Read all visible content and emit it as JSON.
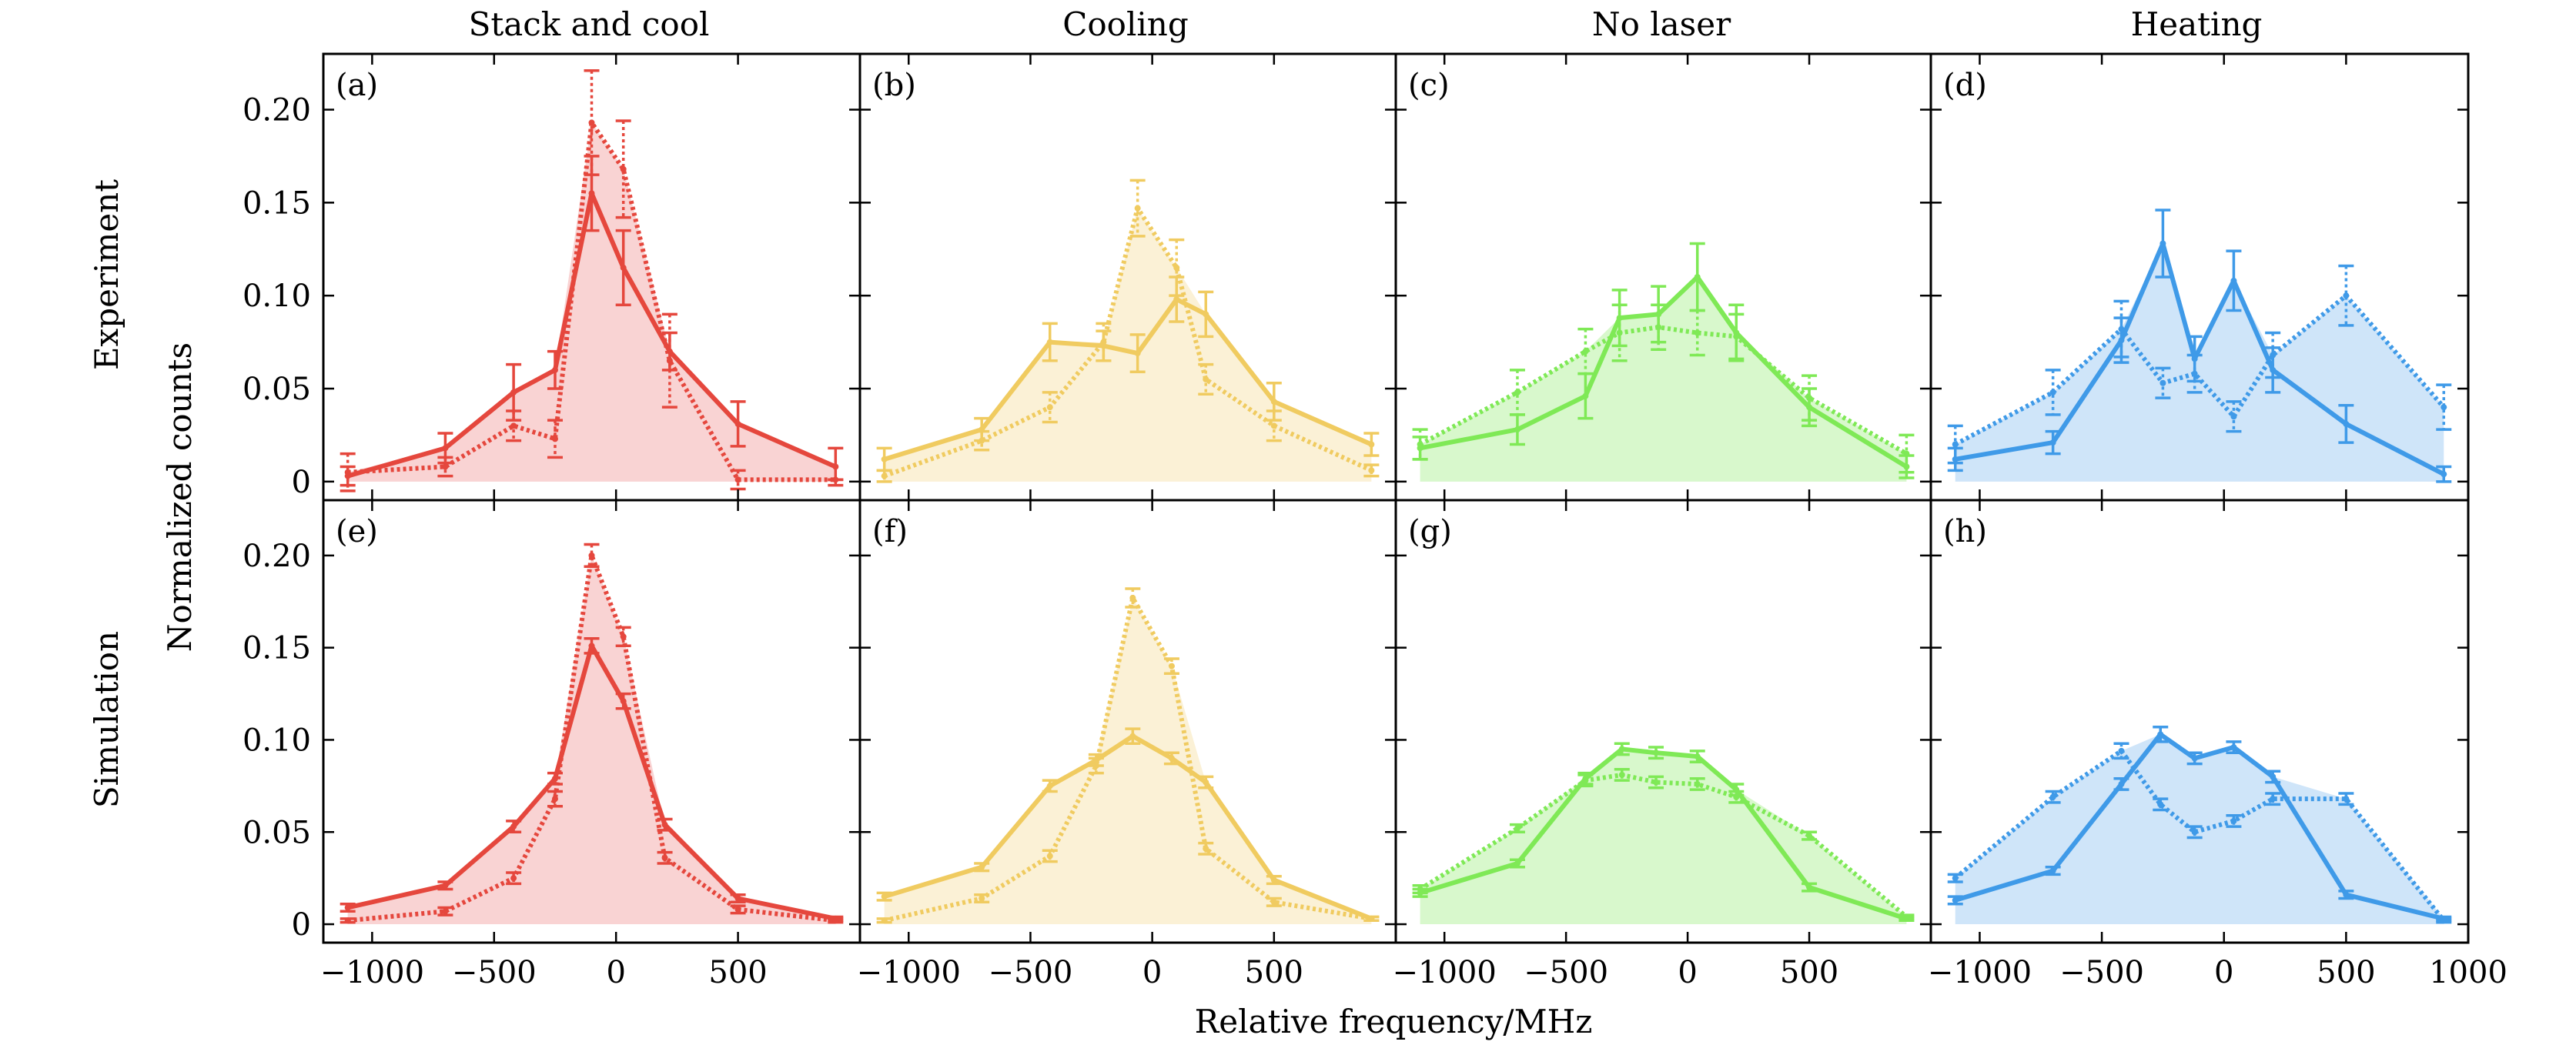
{
  "figure": {
    "column_titles": [
      "Stack and cool",
      "Cooling",
      "No laser",
      "Heating"
    ],
    "row_labels": [
      "Experiment",
      "Simulation"
    ],
    "ylabel": "Normalized counts",
    "xlabel": "Relative frequency/MHz"
  },
  "colors": {
    "red": "#e5473d",
    "red_fill": "#f9d3d3",
    "yellow": "#f0cb60",
    "yellow_fill": "#fbf1d6",
    "green": "#7fe956",
    "green_fill": "#d8f8cc",
    "blue": "#3f9ae8",
    "blue_fill": "#cfe5f9"
  },
  "chart_data": [
    {
      "type": "line",
      "panel": "(a)",
      "row": 0,
      "col": 0,
      "color": "red",
      "xlim": [
        -1200,
        1000
      ],
      "ylim": [
        -0.01,
        0.23
      ],
      "xticks": [
        -1000,
        -500,
        0,
        500,
        1000
      ],
      "yticks": [
        0,
        0.05,
        0.1,
        0.15,
        0.2
      ],
      "ytick_labels": [
        "0",
        "0.05",
        "0.10",
        "0.15",
        "0.20"
      ],
      "xtick_labels": [],
      "series": [
        {
          "name": "solid",
          "style": "solid",
          "x": [
            -1100,
            -700,
            -420,
            -250,
            -100,
            30,
            220,
            500,
            900
          ],
          "y": [
            0.003,
            0.018,
            0.048,
            0.06,
            0.155,
            0.115,
            0.07,
            0.031,
            0.008
          ],
          "err": [
            0.005,
            0.008,
            0.015,
            0.01,
            0.02,
            0.02,
            0.01,
            0.012,
            0.01
          ]
        },
        {
          "name": "dotted",
          "style": "dotted",
          "x": [
            -1100,
            -700,
            -420,
            -250,
            -100,
            30,
            220,
            500,
            900
          ],
          "y": [
            0.005,
            0.008,
            0.03,
            0.023,
            0.193,
            0.168,
            0.065,
            0.001,
            0.001
          ],
          "err": [
            0.01,
            0.005,
            0.008,
            0.01,
            0.028,
            0.026,
            0.025,
            0.005,
            0.0
          ]
        }
      ]
    },
    {
      "type": "line",
      "panel": "(b)",
      "row": 0,
      "col": 1,
      "color": "yellow",
      "xlim": [
        -1200,
        1000
      ],
      "ylim": [
        -0.01,
        0.23
      ],
      "xticks": [
        -1000,
        -500,
        0,
        500,
        1000
      ],
      "yticks": [
        0,
        0.05,
        0.1,
        0.15,
        0.2
      ],
      "ytick_labels": [],
      "xtick_labels": [],
      "series": [
        {
          "name": "solid",
          "style": "solid",
          "x": [
            -1100,
            -700,
            -420,
            -200,
            -60,
            100,
            220,
            500,
            900
          ],
          "y": [
            0.012,
            0.028,
            0.075,
            0.073,
            0.069,
            0.098,
            0.09,
            0.043,
            0.02
          ],
          "err": [
            0.006,
            0.006,
            0.01,
            0.008,
            0.01,
            0.012,
            0.012,
            0.01,
            0.006
          ]
        },
        {
          "name": "dotted",
          "style": "dotted",
          "x": [
            -1100,
            -700,
            -420,
            -200,
            -60,
            100,
            220,
            500,
            900
          ],
          "y": [
            0.003,
            0.022,
            0.04,
            0.075,
            0.147,
            0.115,
            0.055,
            0.03,
            0.006
          ],
          "err": [
            0.003,
            0.005,
            0.008,
            0.01,
            0.015,
            0.015,
            0.008,
            0.008,
            0.003
          ]
        }
      ]
    },
    {
      "type": "line",
      "panel": "(c)",
      "row": 0,
      "col": 2,
      "color": "green",
      "xlim": [
        -1200,
        1000
      ],
      "ylim": [
        -0.01,
        0.23
      ],
      "xticks": [
        -1000,
        -500,
        0,
        500,
        1000
      ],
      "yticks": [
        0,
        0.05,
        0.1,
        0.15,
        0.2
      ],
      "ytick_labels": [],
      "xtick_labels": [],
      "series": [
        {
          "name": "solid",
          "style": "solid",
          "x": [
            -1100,
            -700,
            -420,
            -280,
            -120,
            40,
            200,
            500,
            900
          ],
          "y": [
            0.018,
            0.028,
            0.046,
            0.088,
            0.09,
            0.11,
            0.08,
            0.04,
            0.008
          ],
          "err": [
            0.006,
            0.008,
            0.012,
            0.015,
            0.015,
            0.018,
            0.015,
            0.01,
            0.006
          ]
        },
        {
          "name": "dotted",
          "style": "dotted",
          "x": [
            -1100,
            -700,
            -420,
            -280,
            -120,
            40,
            200,
            500,
            900
          ],
          "y": [
            0.02,
            0.048,
            0.07,
            0.08,
            0.083,
            0.08,
            0.078,
            0.045,
            0.015
          ],
          "err": [
            0.008,
            0.012,
            0.012,
            0.015,
            0.012,
            0.012,
            0.012,
            0.012,
            0.01
          ]
        }
      ]
    },
    {
      "type": "line",
      "panel": "(d)",
      "row": 0,
      "col": 3,
      "color": "blue",
      "xlim": [
        -1200,
        1000
      ],
      "ylim": [
        -0.01,
        0.23
      ],
      "xticks": [
        -1000,
        -500,
        0,
        500,
        1000
      ],
      "yticks": [
        0,
        0.05,
        0.1,
        0.15,
        0.2
      ],
      "ytick_labels": [],
      "xtick_labels": [],
      "series": [
        {
          "name": "solid",
          "style": "solid",
          "x": [
            -1100,
            -700,
            -420,
            -250,
            -120,
            40,
            200,
            500,
            900
          ],
          "y": [
            0.012,
            0.021,
            0.076,
            0.128,
            0.066,
            0.108,
            0.06,
            0.031,
            0.004
          ],
          "err": [
            0.006,
            0.006,
            0.012,
            0.018,
            0.012,
            0.016,
            0.012,
            0.01,
            0.004
          ]
        },
        {
          "name": "dotted",
          "style": "dotted",
          "x": [
            -1100,
            -700,
            -420,
            -250,
            -120,
            40,
            200,
            500,
            900
          ],
          "y": [
            0.02,
            0.048,
            0.082,
            0.053,
            0.058,
            0.035,
            0.068,
            0.1,
            0.04
          ],
          "err": [
            0.01,
            0.012,
            0.015,
            0.008,
            0.01,
            0.008,
            0.012,
            0.016,
            0.012
          ]
        }
      ]
    },
    {
      "type": "line",
      "panel": "(e)",
      "row": 1,
      "col": 0,
      "color": "red",
      "xlim": [
        -1200,
        1000
      ],
      "ylim": [
        -0.01,
        0.23
      ],
      "xticks": [
        -1000,
        -500,
        0,
        500,
        1000
      ],
      "yticks": [
        0,
        0.05,
        0.1,
        0.15,
        0.2
      ],
      "ytick_labels": [
        "0",
        "0.05",
        "0.10",
        "0.15",
        "0.20"
      ],
      "xtick_labels": [
        "−1000",
        "−500",
        "0",
        "500",
        ""
      ],
      "series": [
        {
          "name": "solid",
          "style": "solid",
          "x": [
            -1100,
            -700,
            -420,
            -250,
            -100,
            30,
            200,
            500,
            900
          ],
          "y": [
            0.009,
            0.021,
            0.053,
            0.079,
            0.151,
            0.121,
            0.054,
            0.014,
            0.003
          ],
          "err": [
            0.002,
            0.002,
            0.003,
            0.003,
            0.004,
            0.004,
            0.003,
            0.002,
            0.001
          ]
        },
        {
          "name": "dotted",
          "style": "dotted",
          "x": [
            -1100,
            -700,
            -420,
            -250,
            -100,
            30,
            200,
            500,
            900
          ],
          "y": [
            0.002,
            0.007,
            0.025,
            0.068,
            0.2,
            0.156,
            0.036,
            0.008,
            0.002
          ],
          "err": [
            0.001,
            0.002,
            0.003,
            0.004,
            0.006,
            0.005,
            0.003,
            0.002,
            0.001
          ]
        }
      ]
    },
    {
      "type": "line",
      "panel": "(f)",
      "row": 1,
      "col": 1,
      "color": "yellow",
      "xlim": [
        -1200,
        1000
      ],
      "ylim": [
        -0.01,
        0.23
      ],
      "xticks": [
        -1000,
        -500,
        0,
        500,
        1000
      ],
      "yticks": [
        0,
        0.05,
        0.1,
        0.15,
        0.2
      ],
      "ytick_labels": [],
      "xtick_labels": [
        "−1000",
        "−500",
        "0",
        "500",
        ""
      ],
      "series": [
        {
          "name": "solid",
          "style": "solid",
          "x": [
            -1100,
            -700,
            -420,
            -230,
            -80,
            80,
            220,
            500,
            900
          ],
          "y": [
            0.015,
            0.031,
            0.075,
            0.089,
            0.102,
            0.09,
            0.077,
            0.024,
            0.003
          ],
          "err": [
            0.002,
            0.002,
            0.003,
            0.003,
            0.004,
            0.003,
            0.003,
            0.002,
            0.001
          ]
        },
        {
          "name": "dotted",
          "style": "dotted",
          "x": [
            -1100,
            -700,
            -420,
            -230,
            -80,
            80,
            220,
            500,
            900
          ],
          "y": [
            0.002,
            0.014,
            0.037,
            0.086,
            0.177,
            0.14,
            0.041,
            0.012,
            0.003
          ],
          "err": [
            0.001,
            0.002,
            0.003,
            0.004,
            0.005,
            0.004,
            0.003,
            0.002,
            0.001
          ]
        }
      ]
    },
    {
      "type": "line",
      "panel": "(g)",
      "row": 1,
      "col": 2,
      "color": "green",
      "xlim": [
        -1200,
        1000
      ],
      "ylim": [
        -0.01,
        0.23
      ],
      "xticks": [
        -1000,
        -500,
        0,
        500,
        1000
      ],
      "yticks": [
        0,
        0.05,
        0.1,
        0.15,
        0.2
      ],
      "ytick_labels": [],
      "xtick_labels": [
        "−1000",
        "−500",
        "0",
        "500",
        ""
      ],
      "series": [
        {
          "name": "solid",
          "style": "solid",
          "x": [
            -1100,
            -700,
            -420,
            -270,
            -130,
            40,
            200,
            500,
            900
          ],
          "y": [
            0.017,
            0.033,
            0.079,
            0.095,
            0.093,
            0.091,
            0.073,
            0.02,
            0.003
          ],
          "err": [
            0.002,
            0.002,
            0.003,
            0.003,
            0.003,
            0.003,
            0.003,
            0.002,
            0.001
          ]
        },
        {
          "name": "dotted",
          "style": "dotted",
          "x": [
            -1100,
            -700,
            -420,
            -270,
            -130,
            40,
            200,
            500,
            900
          ],
          "y": [
            0.019,
            0.052,
            0.078,
            0.081,
            0.077,
            0.076,
            0.069,
            0.048,
            0.004
          ],
          "err": [
            0.002,
            0.002,
            0.003,
            0.003,
            0.003,
            0.003,
            0.003,
            0.002,
            0.001
          ]
        }
      ]
    },
    {
      "type": "line",
      "panel": "(h)",
      "row": 1,
      "col": 3,
      "color": "blue",
      "xlim": [
        -1200,
        1000
      ],
      "ylim": [
        -0.01,
        0.23
      ],
      "xticks": [
        -1000,
        -500,
        0,
        500,
        1000
      ],
      "yticks": [
        0,
        0.05,
        0.1,
        0.15,
        0.2
      ],
      "ytick_labels": [],
      "xtick_labels": [
        "−1000",
        "−500",
        "0",
        "500",
        "1000"
      ],
      "series": [
        {
          "name": "solid",
          "style": "solid",
          "x": [
            -1100,
            -700,
            -420,
            -260,
            -120,
            40,
            200,
            500,
            900
          ],
          "y": [
            0.013,
            0.029,
            0.076,
            0.103,
            0.09,
            0.096,
            0.08,
            0.016,
            0.003
          ],
          "err": [
            0.002,
            0.002,
            0.003,
            0.004,
            0.003,
            0.003,
            0.003,
            0.002,
            0.001
          ]
        },
        {
          "name": "dotted",
          "style": "dotted",
          "x": [
            -1100,
            -700,
            -420,
            -260,
            -120,
            40,
            200,
            500,
            900
          ],
          "y": [
            0.025,
            0.069,
            0.094,
            0.065,
            0.05,
            0.056,
            0.068,
            0.068,
            0.002
          ],
          "err": [
            0.002,
            0.003,
            0.004,
            0.003,
            0.003,
            0.003,
            0.003,
            0.003,
            0.001
          ]
        }
      ]
    }
  ]
}
